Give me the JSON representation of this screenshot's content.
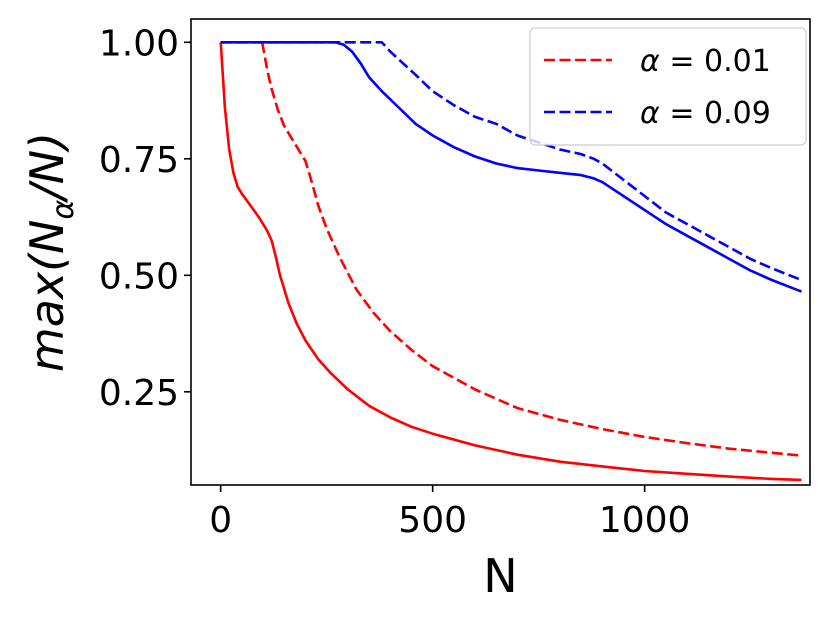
{
  "chart_data": {
    "type": "line",
    "xlabel": "N",
    "ylabel": "max(Nα/N)",
    "ylabel_parts": {
      "prefix": "max(",
      "main": "N",
      "sub": "α",
      "suffix": "/N)"
    },
    "xlim": [
      -70,
      1390
    ],
    "ylim": [
      0.05,
      1.05
    ],
    "xticks": [
      0,
      500,
      1000
    ],
    "xtick_labels": [
      "0",
      "500",
      "1000"
    ],
    "yticks": [
      0.25,
      0.5,
      0.75,
      1.0
    ],
    "ytick_labels": [
      "0.25",
      "0.50",
      "0.75",
      "1.00"
    ],
    "grid": false,
    "legend_position": "top-right",
    "legend": [
      {
        "label_var": "α",
        "label_eq": " = 0.01",
        "color": "#ff0000",
        "dash": "dashed"
      },
      {
        "label_var": "α",
        "label_eq": " = 0.09",
        "color": "#0000ff",
        "dash": "dashed"
      }
    ],
    "series": [
      {
        "color": "#ff0000",
        "dash": "solid",
        "points": [
          [
            0,
            1.0
          ],
          [
            10,
            0.86
          ],
          [
            20,
            0.77
          ],
          [
            30,
            0.72
          ],
          [
            40,
            0.69
          ],
          [
            50,
            0.675
          ],
          [
            70,
            0.65
          ],
          [
            90,
            0.625
          ],
          [
            110,
            0.595
          ],
          [
            120,
            0.575
          ],
          [
            130,
            0.54
          ],
          [
            140,
            0.5
          ],
          [
            160,
            0.44
          ],
          [
            180,
            0.395
          ],
          [
            200,
            0.36
          ],
          [
            230,
            0.32
          ],
          [
            260,
            0.29
          ],
          [
            300,
            0.255
          ],
          [
            350,
            0.22
          ],
          [
            400,
            0.195
          ],
          [
            450,
            0.175
          ],
          [
            500,
            0.16
          ],
          [
            600,
            0.135
          ],
          [
            700,
            0.115
          ],
          [
            800,
            0.1
          ],
          [
            900,
            0.09
          ],
          [
            1000,
            0.08
          ],
          [
            1100,
            0.074
          ],
          [
            1200,
            0.068
          ],
          [
            1300,
            0.063
          ],
          [
            1370,
            0.061
          ]
        ]
      },
      {
        "color": "#ff0000",
        "dash": "dashed",
        "points": [
          [
            98,
            1.0
          ],
          [
            110,
            0.94
          ],
          [
            120,
            0.9
          ],
          [
            135,
            0.855
          ],
          [
            150,
            0.82
          ],
          [
            170,
            0.79
          ],
          [
            190,
            0.76
          ],
          [
            200,
            0.745
          ],
          [
            215,
            0.7
          ],
          [
            230,
            0.65
          ],
          [
            250,
            0.6
          ],
          [
            280,
            0.54
          ],
          [
            320,
            0.47
          ],
          [
            360,
            0.42
          ],
          [
            400,
            0.38
          ],
          [
            450,
            0.34
          ],
          [
            500,
            0.305
          ],
          [
            600,
            0.255
          ],
          [
            700,
            0.215
          ],
          [
            800,
            0.19
          ],
          [
            900,
            0.17
          ],
          [
            1000,
            0.153
          ],
          [
            1100,
            0.14
          ],
          [
            1200,
            0.128
          ],
          [
            1300,
            0.119
          ],
          [
            1370,
            0.113
          ]
        ]
      },
      {
        "color": "#0000ff",
        "dash": "solid",
        "points": [
          [
            0,
            1.0
          ],
          [
            270,
            1.0
          ],
          [
            290,
            0.995
          ],
          [
            310,
            0.98
          ],
          [
            330,
            0.955
          ],
          [
            350,
            0.925
          ],
          [
            380,
            0.895
          ],
          [
            420,
            0.86
          ],
          [
            460,
            0.825
          ],
          [
            500,
            0.8
          ],
          [
            550,
            0.775
          ],
          [
            600,
            0.755
          ],
          [
            650,
            0.74
          ],
          [
            700,
            0.73
          ],
          [
            750,
            0.725
          ],
          [
            800,
            0.72
          ],
          [
            850,
            0.715
          ],
          [
            880,
            0.708
          ],
          [
            900,
            0.7
          ],
          [
            950,
            0.67
          ],
          [
            1000,
            0.64
          ],
          [
            1050,
            0.61
          ],
          [
            1100,
            0.585
          ],
          [
            1150,
            0.56
          ],
          [
            1200,
            0.535
          ],
          [
            1250,
            0.51
          ],
          [
            1300,
            0.49
          ],
          [
            1370,
            0.465
          ]
        ]
      },
      {
        "color": "#0000ff",
        "dash": "dashed",
        "points": [
          [
            0,
            1.0
          ],
          [
            380,
            1.0
          ],
          [
            400,
            0.98
          ],
          [
            430,
            0.955
          ],
          [
            460,
            0.93
          ],
          [
            500,
            0.895
          ],
          [
            550,
            0.865
          ],
          [
            600,
            0.84
          ],
          [
            650,
            0.825
          ],
          [
            700,
            0.8
          ],
          [
            750,
            0.785
          ],
          [
            800,
            0.77
          ],
          [
            850,
            0.76
          ],
          [
            880,
            0.75
          ],
          [
            900,
            0.74
          ],
          [
            950,
            0.705
          ],
          [
            1000,
            0.67
          ],
          [
            1050,
            0.635
          ],
          [
            1100,
            0.61
          ],
          [
            1150,
            0.585
          ],
          [
            1200,
            0.56
          ],
          [
            1250,
            0.535
          ],
          [
            1300,
            0.515
          ],
          [
            1370,
            0.49
          ]
        ]
      }
    ]
  }
}
